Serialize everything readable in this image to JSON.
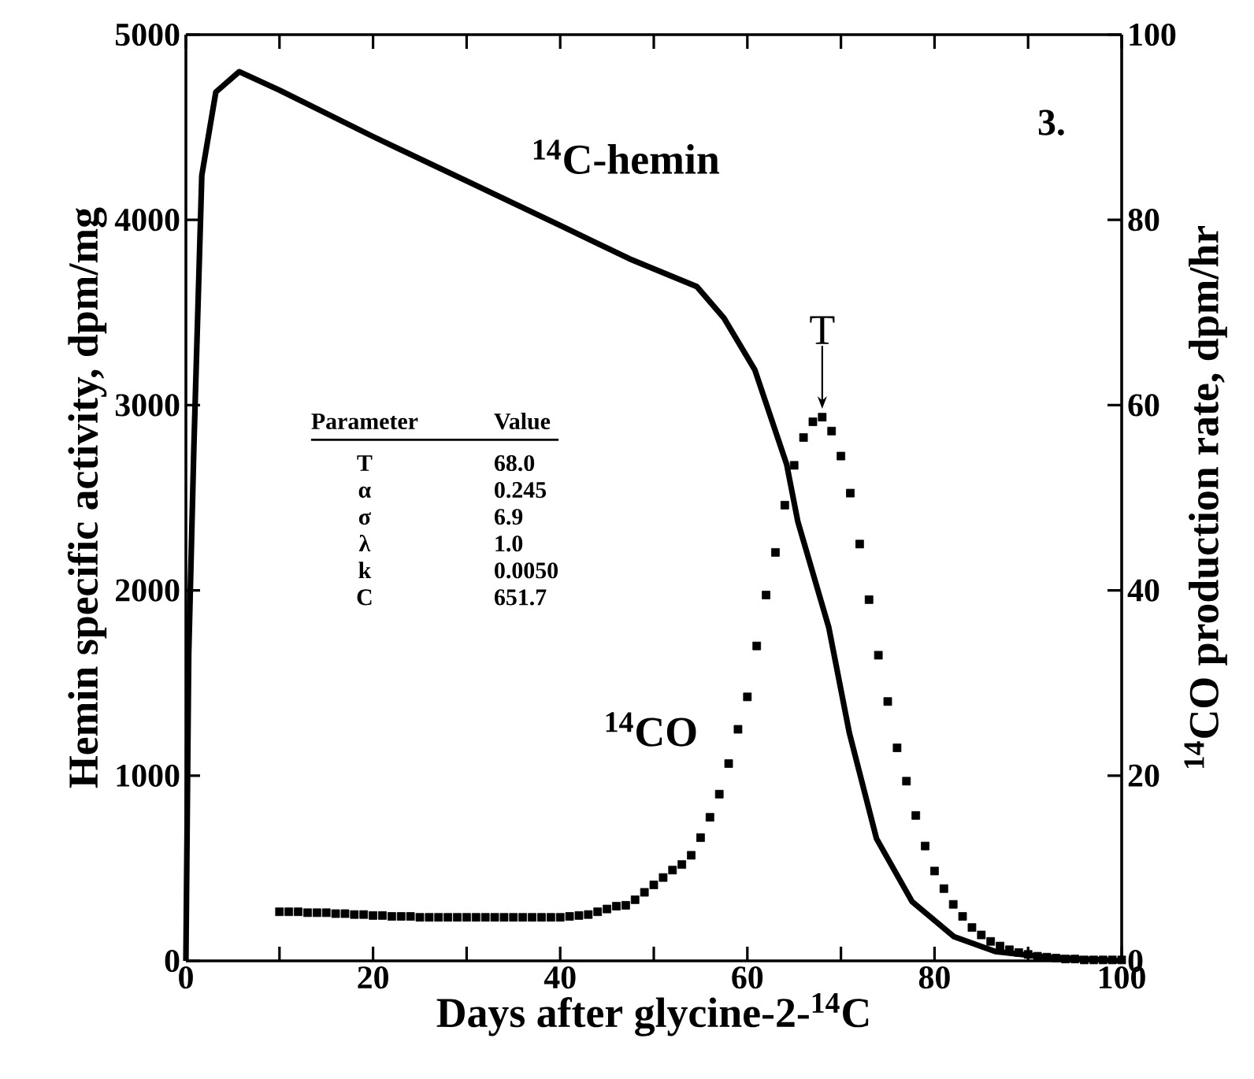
{
  "chart_data": {
    "type": "line",
    "xlabel": "Days after glycine-2-$^{14}$C",
    "ylabel": "Hemin specific activity, dpm/mg",
    "y2label": "$^{14}$CO production rate, dpm/hr",
    "xlim": [
      0,
      100
    ],
    "xticks": [
      0,
      {
        "value": 10,
        "label": null
      },
      20,
      {
        "value": 30,
        "label": null
      },
      40,
      {
        "value": 50,
        "label": null
      },
      60,
      {
        "value": 70,
        "label": null
      },
      80,
      {
        "value": 90,
        "label": null
      },
      100
    ],
    "ylim": [
      0,
      5000
    ],
    "yticks": [
      0,
      1000,
      2000,
      3000,
      4000,
      5000
    ],
    "y2lim": [
      0,
      100
    ],
    "y2ticks": [
      0,
      20,
      40,
      60,
      80,
      100
    ],
    "annotations": [
      "3.",
      {
        "text": "T",
        "x": 68,
        "y": 2980
      },
      "Parameter",
      "Value",
      "T",
      "68.0",
      "α",
      "0.245",
      "σ",
      "6.9",
      "λ",
      "1.0",
      "k",
      "0.0050",
      "C",
      "651.7"
    ],
    "series": [
      {
        "name": "$^{14}$C-hemin",
        "color": "#000000",
        "x": [
          0,
          0.3,
          0.85,
          1.7,
          3.2,
          5.7,
          10,
          20,
          30,
          40,
          47.4,
          54.6,
          57.5,
          60.8,
          64.2,
          65.4,
          68.7,
          70.9,
          73.8,
          77.6,
          82.1,
          86.5,
          92,
          100
        ],
        "values": [
          0,
          1650,
          2770,
          4240,
          4690,
          4800,
          4700,
          4450,
          4210,
          3970,
          3790,
          3640,
          3470,
          3190,
          2680,
          2370,
          1800,
          1230,
          660,
          320,
          130,
          50,
          20,
          0
        ]
      },
      {
        "name": "$^{14}$CO",
        "type": "scatter",
        "marker": "square",
        "axis": "y2",
        "color": "#000000",
        "x": [
          10,
          11,
          12,
          13,
          14,
          15,
          16,
          17,
          18,
          19,
          20,
          21,
          22,
          23,
          24,
          25,
          26,
          27,
          28,
          29,
          30,
          31,
          32,
          33,
          34,
          35,
          36,
          37,
          38,
          39,
          40,
          41,
          42,
          43,
          44,
          45,
          46,
          47,
          48,
          49,
          50,
          51,
          52,
          53,
          54,
          55,
          56,
          57,
          58,
          59,
          60,
          61,
          62,
          63,
          64,
          65,
          66,
          67,
          68,
          69,
          70,
          71,
          72,
          73,
          74,
          75,
          76,
          77,
          78,
          79,
          80,
          81,
          82,
          83,
          84,
          85,
          86,
          87,
          88,
          89,
          90,
          91,
          92,
          93,
          94,
          95,
          96,
          97,
          98,
          99,
          100
        ],
        "values": [
          5.3,
          5.3,
          5.3,
          5.2,
          5.2,
          5.2,
          5.1,
          5.1,
          5.0,
          5.0,
          4.9,
          4.9,
          4.8,
          4.8,
          4.8,
          4.7,
          4.7,
          4.7,
          4.7,
          4.7,
          4.7,
          4.7,
          4.7,
          4.7,
          4.7,
          4.7,
          4.7,
          4.7,
          4.7,
          4.7,
          4.7,
          4.8,
          4.9,
          5.0,
          5.3,
          5.6,
          5.9,
          6.0,
          6.6,
          7.4,
          8.2,
          9.0,
          9.8,
          10.4,
          11.4,
          13.3,
          15.5,
          18.0,
          21.3,
          25.0,
          28.5,
          34.0,
          39.5,
          44.1,
          49.2,
          53.5,
          56.5,
          58.2,
          58.7,
          57.2,
          54.5,
          50.5,
          45.0,
          39.0,
          33.0,
          28.0,
          23.0,
          19.4,
          15.7,
          12.4,
          9.7,
          7.8,
          6.1,
          4.8,
          3.6,
          2.8,
          2.1,
          1.6,
          1.2,
          0.9,
          0.7,
          0.5,
          0.4,
          0.3,
          0.2,
          0.2,
          0.1,
          0.1,
          0.1,
          0.1,
          0.1
        ]
      }
    ]
  }
}
